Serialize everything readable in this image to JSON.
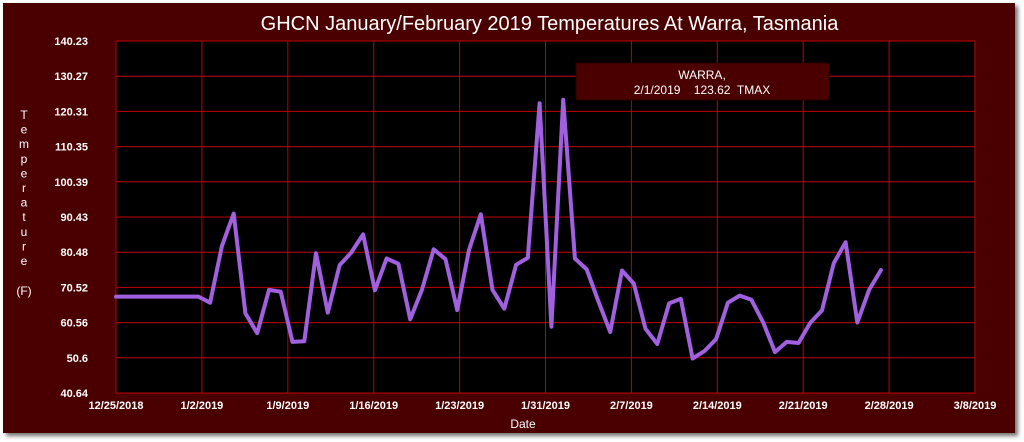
{
  "chart_data": {
    "type": "line",
    "title": "GHCN January/February 2019 Temperatures At Warra, Tasmania",
    "xlabel": "Date",
    "ylabel": "Temperature",
    "ylabel_unit": "(F)",
    "x_ticks": [
      "12/25/2018",
      "1/2/2019",
      "1/9/2019",
      "1/16/2019",
      "1/23/2019",
      "1/31/2019",
      "2/7/2019",
      "2/14/2019",
      "2/21/2019",
      "2/28/2019",
      "3/8/2019"
    ],
    "y_ticks": [
      "40.64",
      "50.6",
      "60.56",
      "70.52",
      "80.48",
      "90.43",
      "100.39",
      "110.35",
      "120.31",
      "130.27",
      "140.23"
    ],
    "xlim": [
      "2018-12-25",
      "2019-03-08"
    ],
    "ylim": [
      40.64,
      140.23
    ],
    "grid": true,
    "colors": {
      "background": "#4a0000",
      "plot_area": "#000000",
      "grid": "#c00000",
      "line": "#a060e0",
      "text": "#ffffff"
    },
    "series": [
      {
        "values": [
          [
            "2018-12-25",
            67.9
          ],
          [
            "2019-01-01",
            67.9
          ],
          [
            "2019-01-02",
            66.2
          ],
          [
            "2019-01-03",
            82.2
          ],
          [
            "2019-01-04",
            91.4
          ],
          [
            "2019-01-05",
            63.2
          ],
          [
            "2019-01-06",
            57.6
          ],
          [
            "2019-01-07",
            69.8
          ],
          [
            "2019-01-08",
            69.3
          ],
          [
            "2019-01-09",
            55.1
          ],
          [
            "2019-01-10",
            55.3
          ],
          [
            "2019-01-11",
            80.2
          ],
          [
            "2019-01-12",
            63.4
          ],
          [
            "2019-01-13",
            76.8
          ],
          [
            "2019-01-14",
            80.4
          ],
          [
            "2019-01-15",
            85.5
          ],
          [
            "2019-01-16",
            69.7
          ],
          [
            "2019-01-17",
            78.7
          ],
          [
            "2019-01-18",
            77.2
          ],
          [
            "2019-01-19",
            61.5
          ],
          [
            "2019-01-20",
            69.8
          ],
          [
            "2019-01-21",
            81.3
          ],
          [
            "2019-01-22",
            78.5
          ],
          [
            "2019-01-23",
            64.1
          ],
          [
            "2019-01-24",
            81.1
          ],
          [
            "2019-01-25",
            91.2
          ],
          [
            "2019-01-26",
            69.8
          ],
          [
            "2019-01-27",
            64.5
          ],
          [
            "2019-01-28",
            76.9
          ],
          [
            "2019-01-29",
            78.9
          ],
          [
            "2019-01-30",
            122.6
          ],
          [
            "2019-01-31",
            59.4
          ],
          [
            "2019-02-01",
            123.6
          ],
          [
            "2019-02-02",
            78.7
          ],
          [
            "2019-02-03",
            75.6
          ],
          [
            "2019-02-04",
            66.5
          ],
          [
            "2019-02-05",
            57.9
          ],
          [
            "2019-02-06",
            75.3
          ],
          [
            "2019-02-07",
            71.6
          ],
          [
            "2019-02-08",
            58.8
          ],
          [
            "2019-02-09",
            54.5
          ],
          [
            "2019-02-10",
            66.0
          ],
          [
            "2019-02-11",
            67.3
          ],
          [
            "2019-02-12",
            50.4
          ],
          [
            "2019-02-13",
            52.5
          ],
          [
            "2019-02-14",
            55.9
          ],
          [
            "2019-02-15",
            66.2
          ],
          [
            "2019-02-16",
            68.2
          ],
          [
            "2019-02-17",
            67.0
          ],
          [
            "2019-02-18",
            60.6
          ],
          [
            "2019-02-19",
            52.2
          ],
          [
            "2019-02-20",
            55.1
          ],
          [
            "2019-02-21",
            54.8
          ],
          [
            "2019-02-22",
            60.5
          ],
          [
            "2019-02-23",
            64.0
          ],
          [
            "2019-02-24",
            77.4
          ],
          [
            "2019-02-25",
            83.3
          ],
          [
            "2019-02-26",
            60.6
          ],
          [
            "2019-02-27",
            69.8
          ],
          [
            "2019-02-28",
            75.4
          ]
        ]
      }
    ],
    "tooltip": {
      "line1": "WARRA,",
      "line2": "2/1/2019    123.62  TMAX"
    }
  }
}
